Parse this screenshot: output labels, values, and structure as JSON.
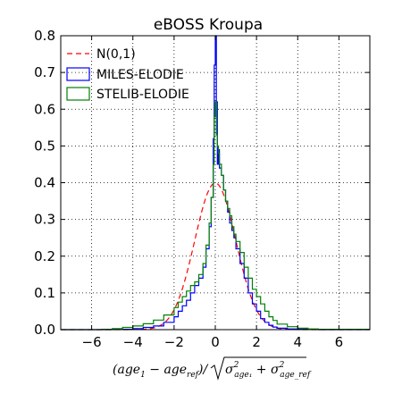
{
  "chart_data": {
    "type": "line",
    "title": "eBOSS Kroupa",
    "xlabel_parts": {
      "open": "(",
      "a1": "age",
      "s1": "1",
      "minus": " − ",
      "a2": "age",
      "s2": "ref",
      "close": ")",
      "slash": "/",
      "sigma1": "σ",
      "sup1": "2",
      "sub1": "age₁",
      "plus": " + ",
      "sigma2": "σ",
      "sup2": "2",
      "sub2": "age_ref"
    },
    "xlim": [
      -7.5,
      7.5
    ],
    "ylim": [
      0,
      0.8
    ],
    "xticks": [
      -6,
      -4,
      -2,
      0,
      2,
      4,
      6
    ],
    "xtick_labels": [
      "−6",
      "−4",
      "−2",
      "0",
      "2",
      "4",
      "6"
    ],
    "yticks": [
      0.0,
      0.1,
      0.2,
      0.3,
      0.4,
      0.5,
      0.6,
      0.7,
      0.8
    ],
    "ytick_labels": [
      "0.0",
      "0.1",
      "0.2",
      "0.3",
      "0.4",
      "0.5",
      "0.6",
      "0.7",
      "0.8"
    ],
    "grid": true,
    "legend_position": "top-left",
    "series": [
      {
        "name": "N(0,1)",
        "kind": "curve",
        "color": "#ff0000",
        "style": "dashed",
        "x": [
          -7.5,
          -4,
          -3.5,
          -3,
          -2.5,
          -2,
          -1.5,
          -1,
          -0.5,
          0,
          0.5,
          1,
          1.5,
          2,
          2.5,
          3,
          3.5,
          4,
          7.5
        ],
        "y": [
          0,
          0.0001,
          0.0009,
          0.0044,
          0.0175,
          0.054,
          0.1295,
          0.242,
          0.352,
          0.399,
          0.352,
          0.242,
          0.1295,
          0.054,
          0.0175,
          0.0044,
          0.0009,
          0.0001,
          0
        ]
      },
      {
        "name": "MILES-ELODIE",
        "kind": "histogram",
        "color": "#0000ff",
        "x": [
          -7.5,
          -5,
          -4,
          -3.5,
          -3,
          -2.5,
          -2,
          -1.8,
          -1.6,
          -1.4,
          -1.2,
          -1,
          -0.8,
          -0.6,
          -0.45,
          -0.3,
          -0.2,
          -0.1,
          -0.05,
          0,
          0.05,
          0.1,
          0.15,
          0.2,
          0.3,
          0.4,
          0.5,
          0.6,
          0.7,
          0.8,
          0.9,
          1,
          1.2,
          1.4,
          1.6,
          1.8,
          2,
          2.2,
          2.4,
          2.6,
          2.8,
          3,
          3.5,
          4,
          5,
          7.5
        ],
        "y": [
          0,
          0.001,
          0.003,
          0.006,
          0.01,
          0.02,
          0.035,
          0.05,
          0.065,
          0.08,
          0.1,
          0.12,
          0.14,
          0.17,
          0.22,
          0.28,
          0.36,
          0.52,
          0.72,
          0.8,
          0.62,
          0.45,
          0.49,
          0.44,
          0.42,
          0.38,
          0.35,
          0.32,
          0.29,
          0.27,
          0.25,
          0.22,
          0.18,
          0.14,
          0.1,
          0.07,
          0.05,
          0.03,
          0.02,
          0.012,
          0.007,
          0.004,
          0.002,
          0.001,
          0,
          0
        ]
      },
      {
        "name": "STELIB-ELODIE",
        "kind": "histogram",
        "color": "#008000",
        "x": [
          -7.5,
          -5.5,
          -5,
          -4.5,
          -4,
          -3.5,
          -3,
          -2.5,
          -2,
          -1.8,
          -1.6,
          -1.4,
          -1.2,
          -1,
          -0.8,
          -0.6,
          -0.45,
          -0.3,
          -0.2,
          -0.1,
          -0.05,
          0,
          0.05,
          0.1,
          0.15,
          0.2,
          0.3,
          0.4,
          0.5,
          0.6,
          0.7,
          0.8,
          0.9,
          1,
          1.2,
          1.4,
          1.6,
          1.8,
          2,
          2.2,
          2.4,
          2.6,
          2.8,
          3,
          3.5,
          4,
          4.5,
          5,
          7.5
        ],
        "y": [
          0,
          0.001,
          0.003,
          0.006,
          0.01,
          0.016,
          0.026,
          0.04,
          0.06,
          0.075,
          0.09,
          0.105,
          0.12,
          0.13,
          0.15,
          0.18,
          0.23,
          0.29,
          0.36,
          0.45,
          0.58,
          0.62,
          0.53,
          0.5,
          0.48,
          0.45,
          0.42,
          0.38,
          0.35,
          0.33,
          0.31,
          0.28,
          0.26,
          0.24,
          0.21,
          0.17,
          0.14,
          0.11,
          0.09,
          0.07,
          0.05,
          0.035,
          0.025,
          0.015,
          0.008,
          0.004,
          0.002,
          0.001,
          0
        ]
      }
    ]
  }
}
